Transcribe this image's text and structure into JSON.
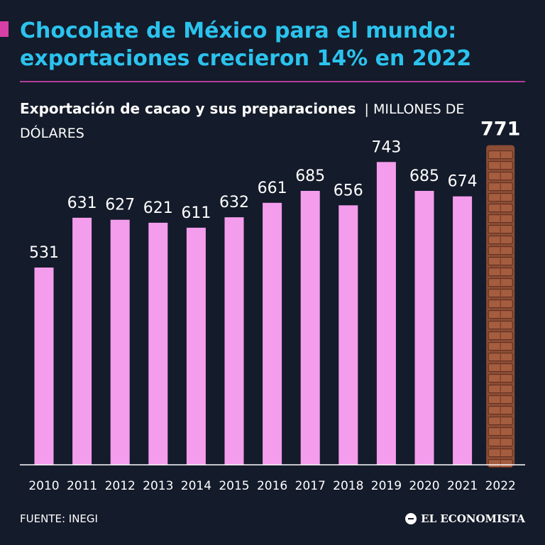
{
  "header": {
    "title": "Chocolate de México para el mundo: exportaciones crecieron 14% en 2022",
    "subtitle": "Exportación de cacao y sus preparaciones",
    "units": "| MILLONES DE DÓLARES"
  },
  "footer": {
    "source": "FUENTE: INEGI",
    "brand": "EL ECONOMISTA"
  },
  "colors": {
    "background": "#141b2a",
    "title": "#2bc3ee",
    "bar": "#f49ded",
    "chocolate": "#8b4d36",
    "accent": "#d63fa6"
  },
  "chart_data": {
    "type": "bar",
    "title": "Exportación de cacao y sus preparaciones",
    "ylabel": "Millones de dólares",
    "xlabel": "",
    "categories": [
      "2010",
      "2011",
      "2012",
      "2013",
      "2014",
      "2015",
      "2016",
      "2017",
      "2018",
      "2019",
      "2020",
      "2021",
      "2022"
    ],
    "values": [
      531,
      631,
      627,
      621,
      611,
      632,
      661,
      685,
      656,
      743,
      685,
      674,
      771
    ],
    "labels": [
      "531",
      "631",
      "627",
      "621",
      "611",
      "632",
      "661",
      "685",
      "656",
      "743",
      "685",
      "674",
      "771"
    ],
    "highlight_category": "2022",
    "highlight_style": "stacked chocolate bar",
    "ylim": [
      0,
      800
    ],
    "grid": false
  }
}
